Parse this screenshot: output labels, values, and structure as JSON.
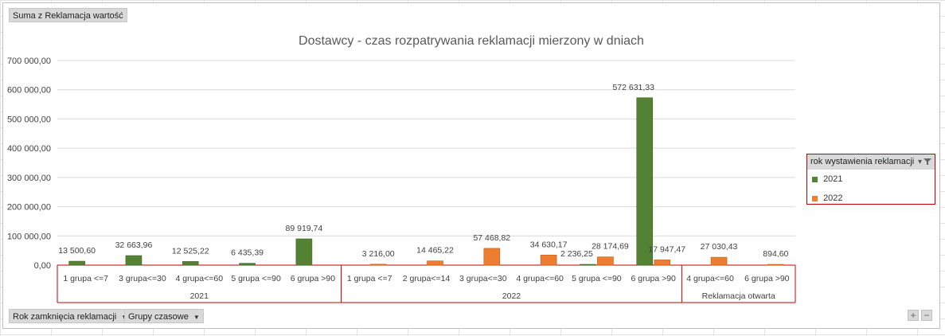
{
  "value_field": "Suma z Reklamacja wartość",
  "row_fields": [
    {
      "label": "Rok zamknięcia reklamacji"
    },
    {
      "label": "Grupy czasowe"
    }
  ],
  "legend": {
    "title": "rok wystawienia reklamacji",
    "filter_icon": "funnel-icon",
    "items": [
      {
        "name": "2021",
        "color": "#548235"
      },
      {
        "name": "2022",
        "color": "#ed7d31"
      }
    ]
  },
  "zoom": {
    "plus": "+",
    "minus": "−"
  },
  "chart_data": {
    "type": "bar",
    "title": "Dostawcy - czas rozpatrywania reklamacji mierzony w dniach",
    "ylim": [
      0,
      700000
    ],
    "yticks": [
      "0,00",
      "100 000,00",
      "200 000,00",
      "300 000,00",
      "400 000,00",
      "500 000,00",
      "600 000,00",
      "700 000,00"
    ],
    "grid": true,
    "legend_position": "right",
    "colors": {
      "2021": "#548235",
      "2022": "#ed7d31"
    },
    "groups": [
      {
        "label": "2021",
        "categories": [
          {
            "label": "1 grupa <=7",
            "values": {
              "2021": 13500.6
            },
            "labels": {
              "2021": "13 500,60"
            }
          },
          {
            "label": "3 grupa<=30",
            "values": {
              "2021": 32663.96
            },
            "labels": {
              "2021": "32 663,96"
            }
          },
          {
            "label": "4 grupa<=60",
            "values": {
              "2021": 12525.22
            },
            "labels": {
              "2021": "12 525,22"
            }
          },
          {
            "label": "5 grupa <=90",
            "values": {
              "2021": 6435.39
            },
            "labels": {
              "2021": "6 435,39"
            }
          },
          {
            "label": "6 grupa >90",
            "values": {
              "2021": 89919.74
            },
            "labels": {
              "2021": "89 919,74"
            }
          }
        ]
      },
      {
        "label": "2022",
        "categories": [
          {
            "label": "1 grupa <=7",
            "values": {
              "2022": 3216.0
            },
            "labels": {
              "2022": "3 216,00"
            }
          },
          {
            "label": "2 grupa<=14",
            "values": {
              "2022": 14465.22
            },
            "labels": {
              "2022": "14 465,22"
            }
          },
          {
            "label": "3 grupa<=30",
            "values": {
              "2022": 57468.82
            },
            "labels": {
              "2022": "57 468,82"
            }
          },
          {
            "label": "4 grupa<=60",
            "values": {
              "2022": 34630.17
            },
            "labels": {
              "2022": "34 630,17"
            }
          },
          {
            "label": "5 grupa <=90",
            "values": {
              "2021": 2236.25,
              "2022": 28174.69
            },
            "labels": {
              "2021": "2 236,25",
              "2022": "28 174,69"
            }
          },
          {
            "label": "6 grupa >90",
            "values": {
              "2021": 572631.33,
              "2022": 17947.47
            },
            "labels": {
              "2021": "572 631,33",
              "2022": "17 947,47"
            }
          }
        ]
      },
      {
        "label": "Reklamacja otwarta",
        "categories": [
          {
            "label": "4 grupa<=60",
            "values": {
              "2022": 27030.43
            },
            "labels": {
              "2022": "27 030,43"
            }
          },
          {
            "label": "6 grupa >90",
            "values": {
              "2022": 894.6
            },
            "labels": {
              "2022": "894,60"
            }
          }
        ]
      }
    ]
  }
}
